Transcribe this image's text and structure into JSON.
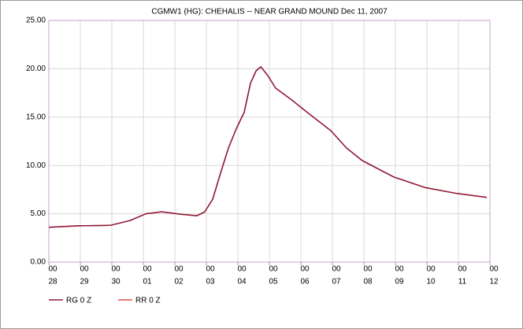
{
  "chart_data": {
    "type": "line",
    "title": "CGMW1 (HG): CHEHALIS -- NEAR GRAND MOUND    Dec 11, 2007",
    "x": [
      0,
      0.95,
      1.95,
      2.58,
      3.08,
      3.58,
      4.2,
      4.7,
      4.95,
      5.2,
      5.45,
      5.7,
      5.95,
      6.2,
      6.4,
      6.58,
      6.73,
      6.95,
      7.2,
      7.7,
      8.2,
      8.95,
      9.45,
      9.95,
      10.95,
      11.95,
      12.95,
      13.9
    ],
    "series": [
      {
        "name": "RG 0 Z",
        "color": "#8b1a3a",
        "values": [
          3.6,
          3.75,
          3.8,
          4.3,
          5.0,
          5.2,
          4.95,
          4.8,
          5.2,
          6.5,
          9.2,
          11.8,
          13.8,
          15.5,
          18.5,
          19.8,
          20.2,
          19.3,
          18.0,
          16.8,
          15.5,
          13.6,
          11.8,
          10.5,
          8.8,
          7.7,
          7.1,
          6.7
        ]
      },
      {
        "name": "RR 0 Z",
        "color": "#e05050",
        "values": [
          3.6,
          3.75,
          3.8,
          4.3,
          5.0,
          5.2,
          4.95,
          4.8,
          5.2,
          6.5,
          9.2,
          11.8,
          13.8,
          15.5,
          18.5,
          19.8,
          20.2,
          19.3,
          18.0,
          16.8,
          15.5,
          13.6,
          11.8,
          10.5,
          8.8,
          7.7,
          7.1,
          6.7
        ]
      }
    ],
    "xlim": [
      0,
      14
    ],
    "xtick_hour": "00",
    "xticks": [
      {
        "value": 0,
        "label": "28"
      },
      {
        "value": 1,
        "label": "29"
      },
      {
        "value": 2,
        "label": "30"
      },
      {
        "value": 3,
        "label": "01"
      },
      {
        "value": 4,
        "label": "02"
      },
      {
        "value": 5,
        "label": "03"
      },
      {
        "value": 6,
        "label": "04"
      },
      {
        "value": 7,
        "label": "05"
      },
      {
        "value": 8,
        "label": "06"
      },
      {
        "value": 9,
        "label": "07"
      },
      {
        "value": 10,
        "label": "08"
      },
      {
        "value": 11,
        "label": "09"
      },
      {
        "value": 12,
        "label": "10"
      },
      {
        "value": 13,
        "label": "11"
      },
      {
        "value": 14,
        "label": "12"
      }
    ],
    "ylim": [
      0,
      25
    ],
    "yticks": [
      {
        "value": 0,
        "label": "0.00"
      },
      {
        "value": 5,
        "label": "5.00"
      },
      {
        "value": 10,
        "label": "10.00"
      },
      {
        "value": 15,
        "label": "15.00"
      },
      {
        "value": 20,
        "label": "20.00"
      },
      {
        "value": 25,
        "label": "25.00"
      }
    ],
    "grid": true
  }
}
